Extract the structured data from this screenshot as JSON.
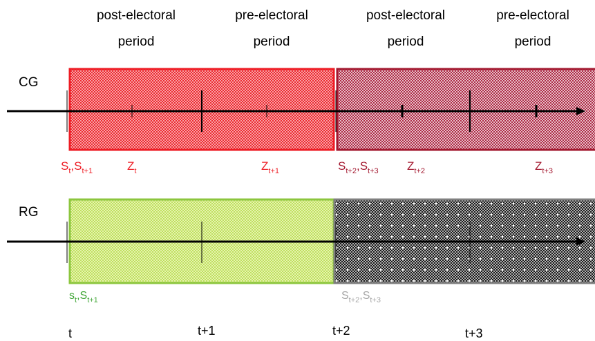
{
  "headers": [
    {
      "line1": "post-electoral",
      "line2": "period"
    },
    {
      "line1": "pre-electoral",
      "line2": "period"
    },
    {
      "line1": "post-electoral",
      "line2": "period"
    },
    {
      "line1": "pre-electoral",
      "line2": "period"
    }
  ],
  "rows": {
    "cg": {
      "label": "CG"
    },
    "rg": {
      "label": "RG"
    }
  },
  "cg_labels": {
    "s1": {
      "base": "S",
      "sub": "t"
    },
    "s2": {
      "base": "S",
      "sub": "t+1"
    },
    "z1": {
      "base": "Z",
      "sub": "t"
    },
    "z2": {
      "base": "Z",
      "sub": "t+1"
    },
    "s3": {
      "base": "S",
      "sub": "t+2"
    },
    "s4": {
      "base": "S",
      "sub": "t+3"
    },
    "z3": {
      "base": "Z",
      "sub": "t+2"
    },
    "z4": {
      "base": "Z",
      "sub": "t+3"
    }
  },
  "rg_labels": {
    "s1": {
      "base": "s",
      "sub": "t"
    },
    "s2": {
      "base": "S",
      "sub": "t+1"
    },
    "s3": {
      "base": "S",
      "sub": "t+2"
    },
    "s4": {
      "base": "S",
      "sub": "t+3"
    }
  },
  "ticks": [
    "t",
    "t+1",
    "t+2",
    "t+3"
  ],
  "colors": {
    "cg_first": "#ee1c24",
    "cg_second": "#a3182f",
    "rg_first": "#8cc63e",
    "rg_second": "#7f7f7f",
    "rg_label": "#3fa535",
    "rg_label_grey": "#a6a6a6"
  }
}
